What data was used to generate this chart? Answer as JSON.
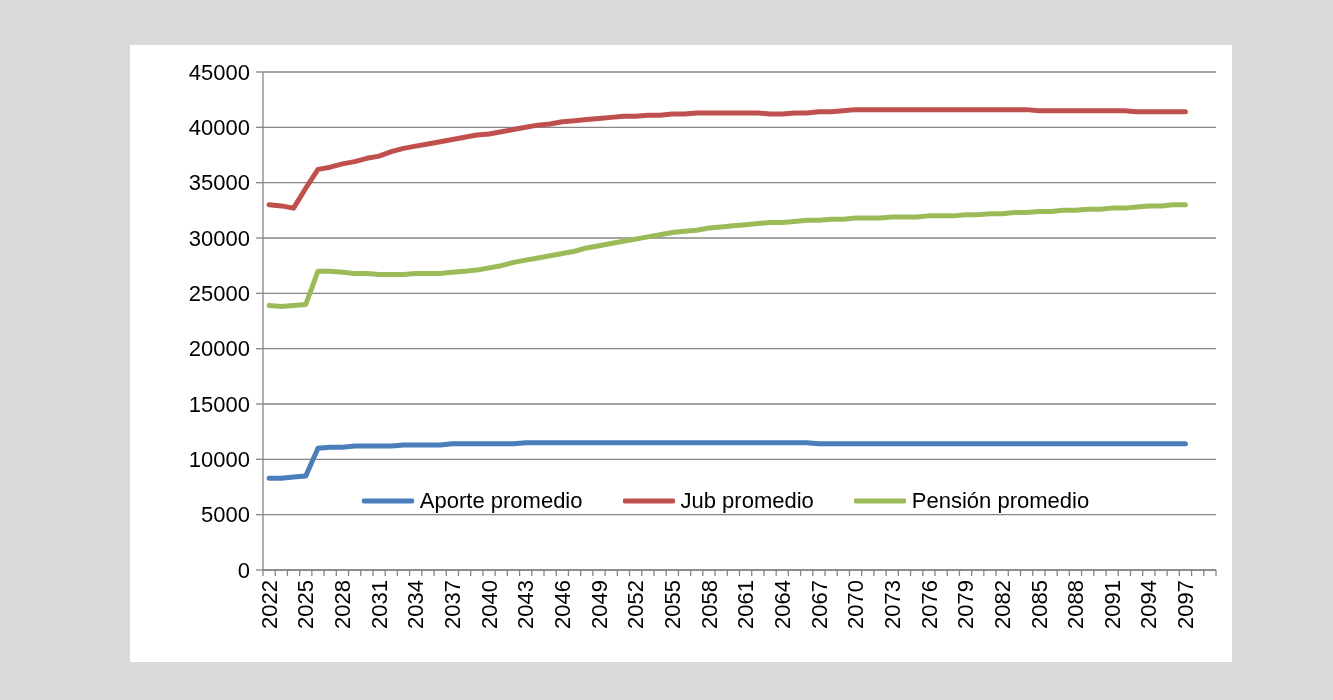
{
  "chart_data": {
    "type": "line",
    "categories": [
      "2022",
      null,
      null,
      "2025",
      null,
      null,
      "2028",
      null,
      null,
      "2031",
      null,
      null,
      "2034",
      null,
      null,
      "2037",
      null,
      null,
      "2040",
      null,
      null,
      "2043",
      null,
      null,
      "2046",
      null,
      null,
      "2049",
      null,
      null,
      "2052",
      null,
      null,
      "2055",
      null,
      null,
      "2058",
      null,
      null,
      "2061",
      null,
      null,
      "2064",
      null,
      null,
      "2067",
      null,
      null,
      "2070",
      null,
      null,
      "2073",
      null,
      null,
      "2076",
      null,
      null,
      "2079",
      null,
      null,
      "2082",
      null,
      null,
      "2085",
      null,
      null,
      "2088",
      null,
      null,
      "2091",
      null,
      null,
      "2094",
      null,
      null,
      "2097",
      null,
      null
    ],
    "series": [
      {
        "name": "Aporte promedio",
        "color": "#4a7ebb",
        "values": [
          8300,
          8300,
          8400,
          8500,
          11000,
          11100,
          11100,
          11200,
          11200,
          11200,
          11200,
          11300,
          11300,
          11300,
          11300,
          11400,
          11400,
          11400,
          11400,
          11400,
          11400,
          11500,
          11500,
          11500,
          11500,
          11500,
          11500,
          11500,
          11500,
          11500,
          11500,
          11500,
          11500,
          11500,
          11500,
          11500,
          11500,
          11500,
          11500,
          11500,
          11500,
          11500,
          11500,
          11500,
          11500,
          11400,
          11400,
          11400,
          11400,
          11400,
          11400,
          11400,
          11400,
          11400,
          11400,
          11400,
          11400,
          11400,
          11400,
          11400,
          11400,
          11400,
          11400,
          11400,
          11400,
          11400,
          11400,
          11400,
          11400,
          11400,
          11400,
          11400,
          11400,
          11400,
          11400,
          11400,
          null,
          null
        ]
      },
      {
        "name": "Jub promedio",
        "color": "#c0504d",
        "values": [
          33000,
          32900,
          32700,
          34500,
          36200,
          36400,
          36700,
          36900,
          37200,
          37400,
          37800,
          38100,
          38300,
          38500,
          38700,
          38900,
          39100,
          39300,
          39400,
          39600,
          39800,
          40000,
          40200,
          40300,
          40500,
          40600,
          40700,
          40800,
          40900,
          41000,
          41000,
          41100,
          41100,
          41200,
          41200,
          41300,
          41300,
          41300,
          41300,
          41300,
          41300,
          41200,
          41200,
          41300,
          41300,
          41400,
          41400,
          41500,
          41600,
          41600,
          41600,
          41600,
          41600,
          41600,
          41600,
          41600,
          41600,
          41600,
          41600,
          41600,
          41600,
          41600,
          41600,
          41500,
          41500,
          41500,
          41500,
          41500,
          41500,
          41500,
          41500,
          41400,
          41400,
          41400,
          41400,
          41400,
          null,
          null
        ]
      },
      {
        "name": "Pensión promedio",
        "color": "#9bbb59",
        "values": [
          23900,
          23800,
          23900,
          24000,
          27000,
          27000,
          26900,
          26800,
          26800,
          26700,
          26700,
          26700,
          26800,
          26800,
          26800,
          26900,
          27000,
          27100,
          27300,
          27500,
          27800,
          28000,
          28200,
          28400,
          28600,
          28800,
          29100,
          29300,
          29500,
          29700,
          29900,
          30100,
          30300,
          30500,
          30600,
          30700,
          30900,
          31000,
          31100,
          31200,
          31300,
          31400,
          31400,
          31500,
          31600,
          31600,
          31700,
          31700,
          31800,
          31800,
          31800,
          31900,
          31900,
          31900,
          32000,
          32000,
          32000,
          32100,
          32100,
          32200,
          32200,
          32300,
          32300,
          32400,
          32400,
          32500,
          32500,
          32600,
          32600,
          32700,
          32700,
          32800,
          32900,
          32900,
          33000,
          33000,
          null,
          null
        ]
      }
    ],
    "ylim": [
      0,
      45000
    ],
    "yticks": [
      0,
      5000,
      10000,
      15000,
      20000,
      25000,
      30000,
      35000,
      40000,
      45000
    ],
    "grid": "y",
    "legend": "bottom"
  }
}
